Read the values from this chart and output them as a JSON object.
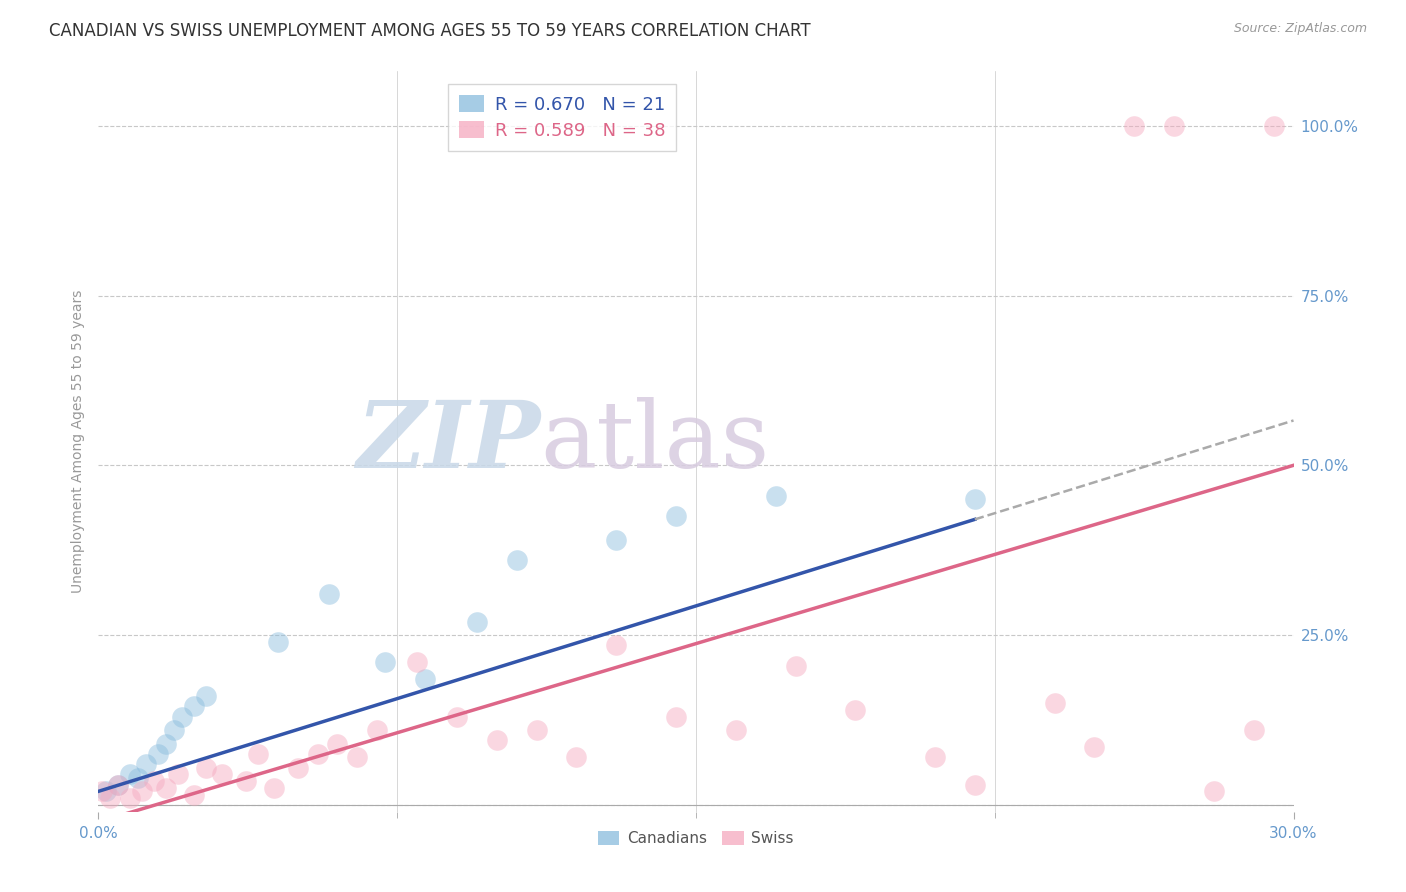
{
  "title": "CANADIAN VS SWISS UNEMPLOYMENT AMONG AGES 55 TO 59 YEARS CORRELATION CHART",
  "source": "Source: ZipAtlas.com",
  "ylabel": "Unemployment Among Ages 55 to 59 years",
  "xlim": [
    0.0,
    0.3
  ],
  "ylim": [
    -0.01,
    1.08
  ],
  "x_ticks": [
    0.0,
    0.3
  ],
  "x_tick_labels": [
    "0.0%",
    "30.0%"
  ],
  "y_ticks": [
    0.0,
    0.25,
    0.5,
    0.75,
    1.0
  ],
  "y_tick_labels": [
    "",
    "25.0%",
    "50.0%",
    "75.0%",
    "100.0%"
  ],
  "grid_color": "#c8c8c8",
  "background_color": "#ffffff",
  "canadians_color": "#88bbdd",
  "swiss_color": "#f5a8be",
  "canadians_line_color": "#3355aa",
  "swiss_line_color": "#dd6688",
  "canadians_R": 0.67,
  "canadians_N": 21,
  "swiss_R": 0.589,
  "swiss_N": 38,
  "canadians_x": [
    0.002,
    0.005,
    0.008,
    0.01,
    0.012,
    0.015,
    0.017,
    0.019,
    0.021,
    0.024,
    0.027,
    0.045,
    0.058,
    0.072,
    0.082,
    0.095,
    0.105,
    0.13,
    0.145,
    0.17,
    0.22
  ],
  "canadians_y": [
    0.02,
    0.03,
    0.045,
    0.04,
    0.06,
    0.075,
    0.09,
    0.11,
    0.13,
    0.145,
    0.16,
    0.24,
    0.31,
    0.21,
    0.185,
    0.27,
    0.36,
    0.39,
    0.425,
    0.455,
    0.45
  ],
  "swiss_x": [
    0.001,
    0.003,
    0.005,
    0.008,
    0.011,
    0.014,
    0.017,
    0.02,
    0.024,
    0.027,
    0.031,
    0.037,
    0.04,
    0.044,
    0.05,
    0.055,
    0.06,
    0.065,
    0.07,
    0.08,
    0.09,
    0.1,
    0.11,
    0.12,
    0.13,
    0.145,
    0.16,
    0.175,
    0.19,
    0.21,
    0.22,
    0.24,
    0.25,
    0.26,
    0.27,
    0.28,
    0.29,
    0.295
  ],
  "swiss_y": [
    0.02,
    0.01,
    0.03,
    0.01,
    0.02,
    0.035,
    0.025,
    0.045,
    0.015,
    0.055,
    0.045,
    0.035,
    0.075,
    0.025,
    0.055,
    0.075,
    0.09,
    0.07,
    0.11,
    0.21,
    0.13,
    0.095,
    0.11,
    0.07,
    0.235,
    0.13,
    0.11,
    0.205,
    0.14,
    0.07,
    0.03,
    0.15,
    0.085,
    1.0,
    1.0,
    0.02,
    0.11,
    1.0
  ],
  "can_line_x_solid_end": 0.22,
  "can_line_x_dashed_start": 0.22,
  "can_line_slope": 1.82,
  "can_line_intercept": 0.02,
  "swiss_line_slope": 1.75,
  "swiss_line_intercept": -0.025,
  "marker_size": 220,
  "marker_alpha": 0.45,
  "title_fontsize": 12,
  "label_fontsize": 10,
  "tick_fontsize": 11,
  "legend_fontsize": 13,
  "source_fontsize": 9
}
